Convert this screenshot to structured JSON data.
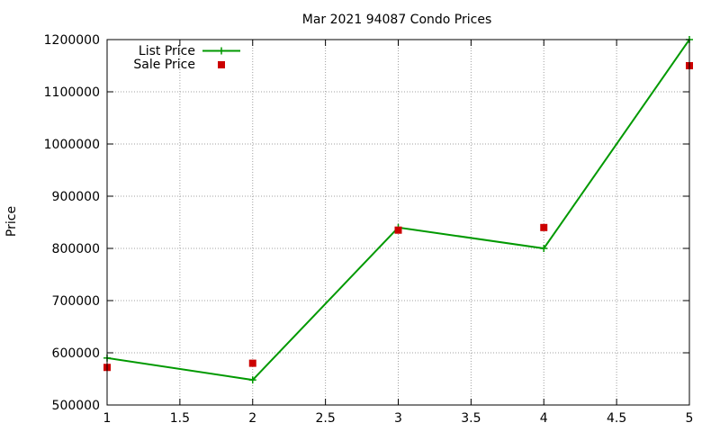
{
  "chart_data": {
    "type": "line",
    "title": "Mar 2021 94087 Condo Prices",
    "xlabel": "",
    "ylabel": "Price",
    "x_ticks": [
      "1",
      "1.5",
      "2",
      "2.5",
      "3",
      "3.5",
      "4",
      "4.5",
      "5"
    ],
    "y_ticks": [
      "500000",
      "600000",
      "700000",
      "800000",
      "900000",
      "1000000",
      "1100000",
      "1200000"
    ],
    "xlim": [
      1,
      5
    ],
    "ylim": [
      500000,
      1200000
    ],
    "grid": true,
    "legend_position": "top-left",
    "series": [
      {
        "name": "List Price",
        "style": "line with plus markers",
        "color": "#009900",
        "x": [
          1,
          2,
          3,
          4,
          5
        ],
        "y": [
          590000,
          548000,
          840000,
          800000,
          1200000
        ]
      },
      {
        "name": "Sale Price",
        "style": "square markers",
        "color": "#cc0000",
        "x": [
          1,
          2,
          3,
          4,
          5
        ],
        "y": [
          572000,
          580000,
          835000,
          840000,
          1150000
        ]
      }
    ]
  }
}
